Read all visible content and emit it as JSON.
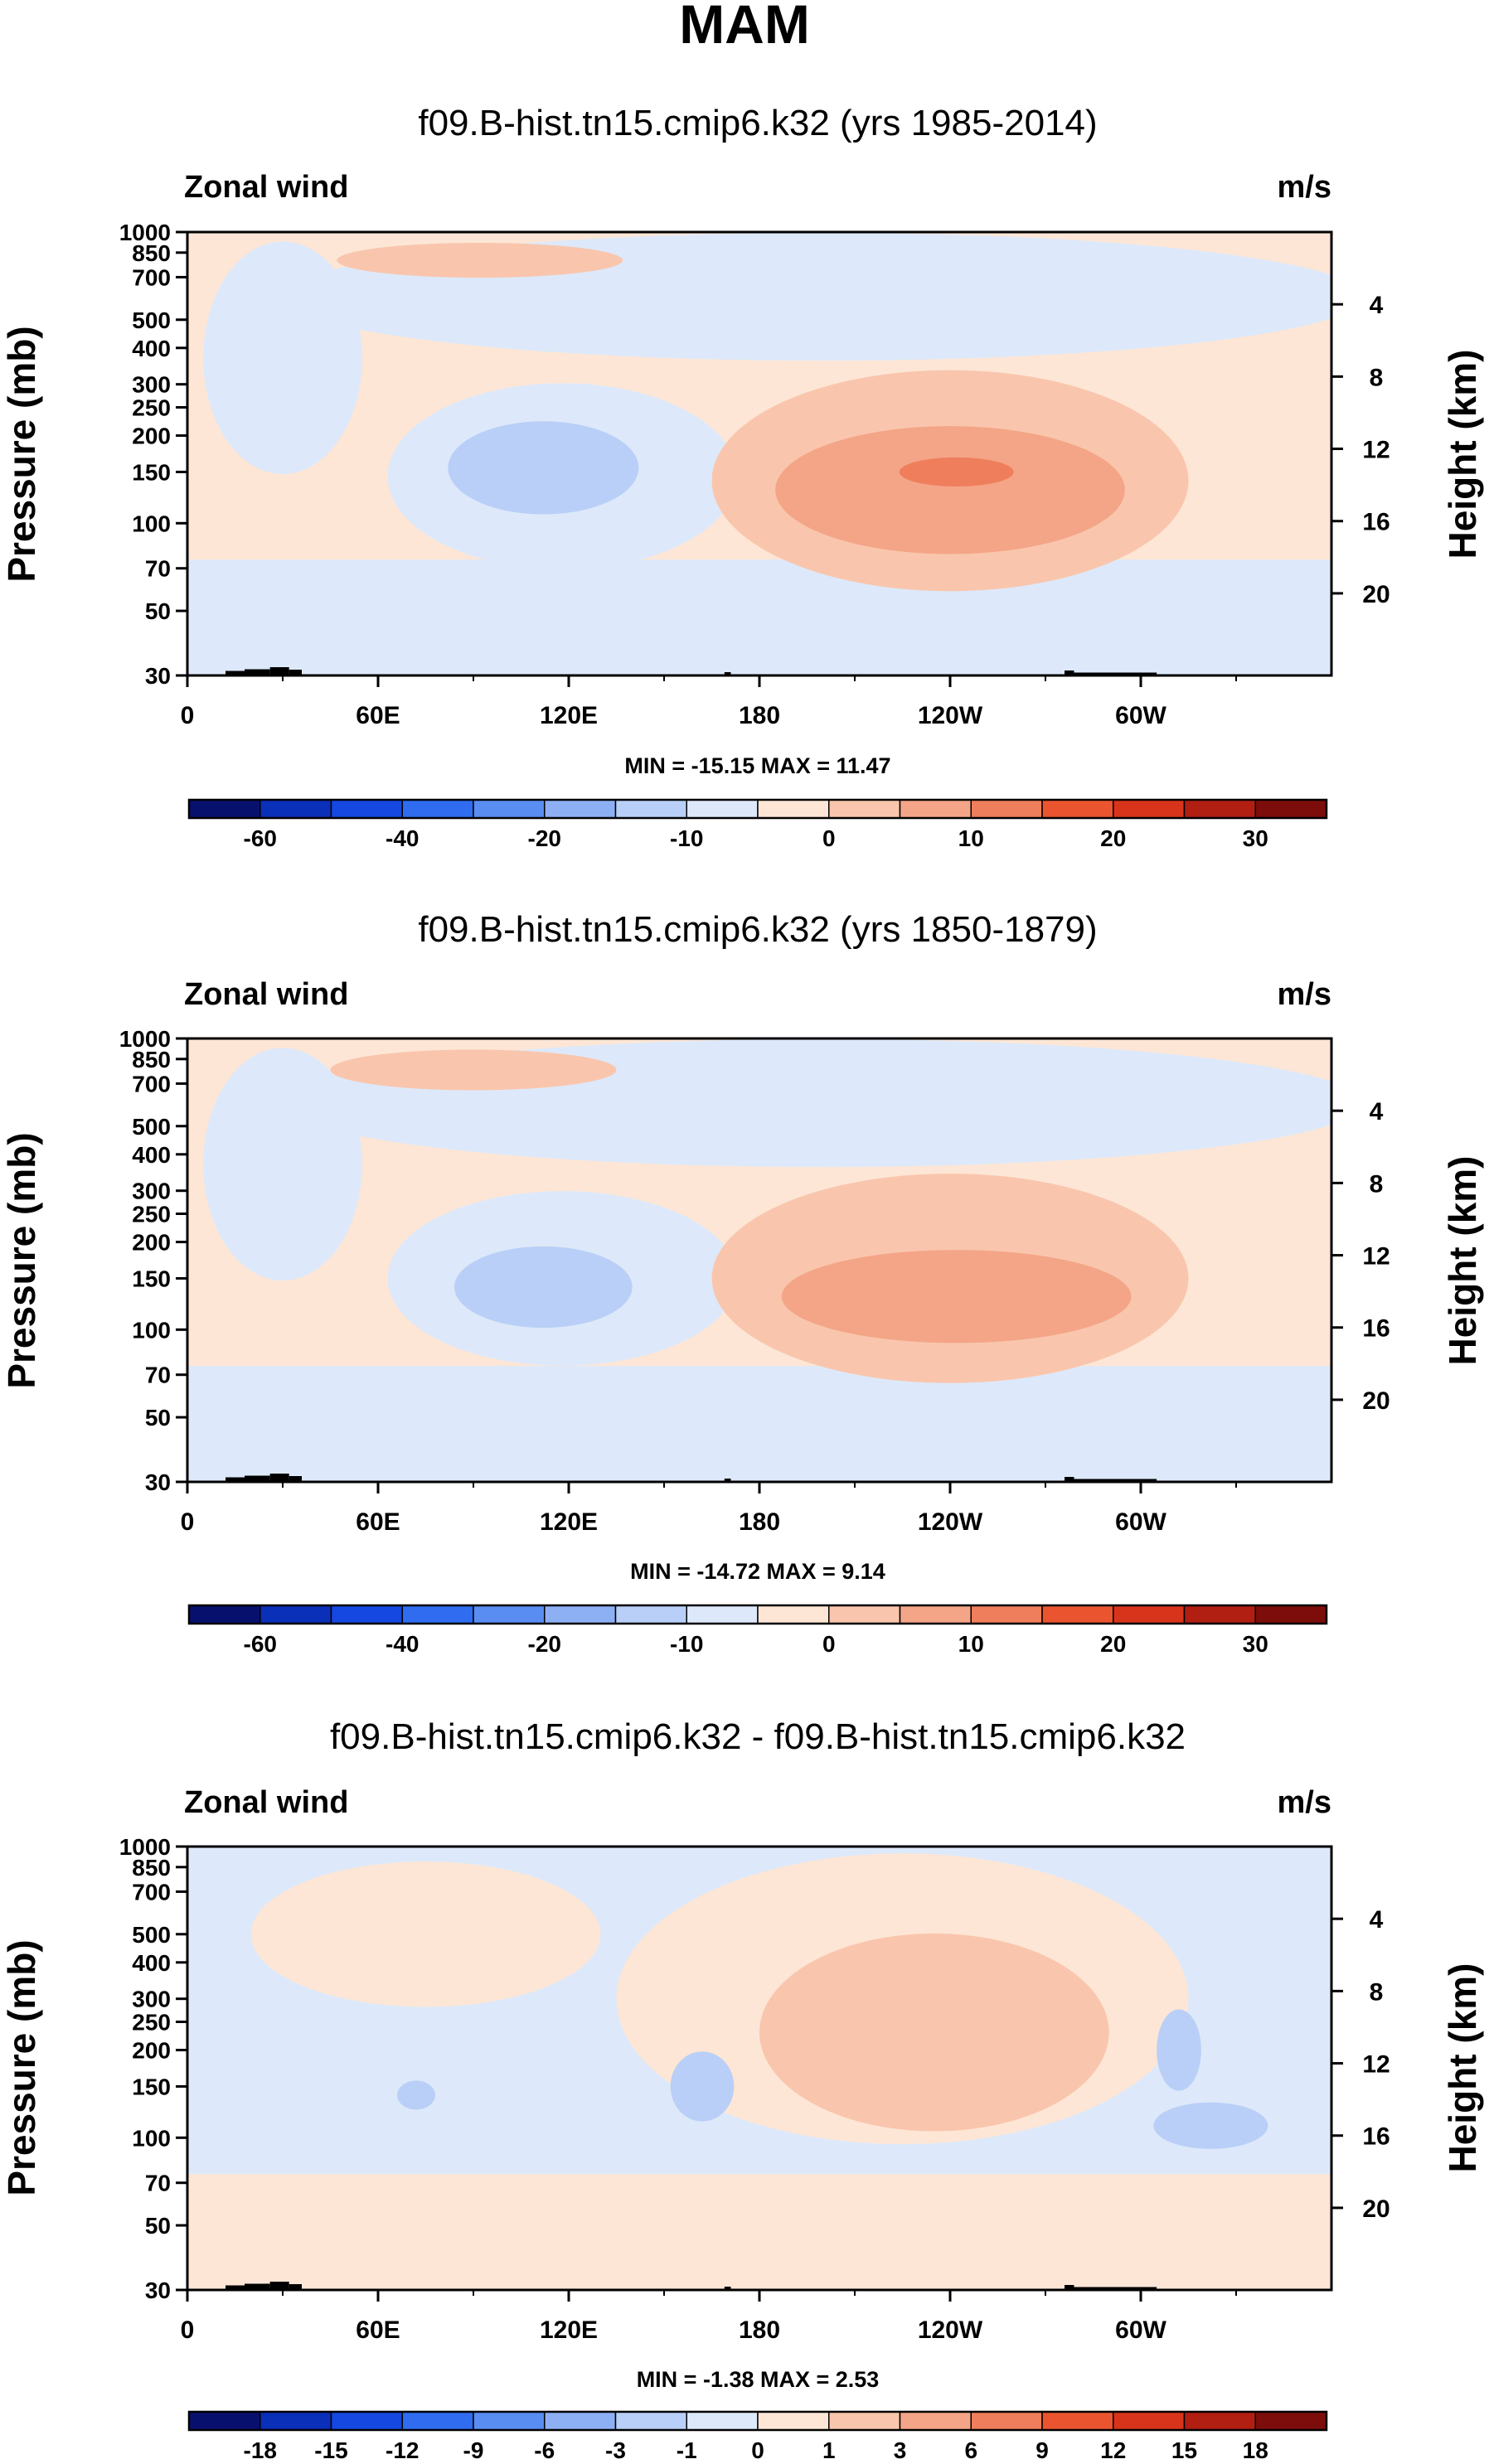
{
  "figure": {
    "title": "MAM"
  },
  "colors": {
    "full": [
      "#08106e",
      "#0a2fb8",
      "#1548e0",
      "#2f6cf0",
      "#5a8df2",
      "#8db0f5",
      "#b9cff7",
      "#dde9fa",
      "#fde6d6",
      "#f9c6ad",
      "#f4a587",
      "#ef7e5c",
      "#ea5530",
      "#d8341c",
      "#b11e12",
      "#7c0d0b"
    ],
    "ink": "#000000",
    "topo": "#000000",
    "frame": "#000000"
  },
  "chart_data": [
    {
      "type": "contour",
      "title": "f09.B-hist.tn15.cmip6.k32 (yrs 1985-2014)",
      "left_label": "Zonal wind",
      "right_label": "m/s",
      "xlabel": "",
      "ylabel": "Pressure (mb)",
      "ylabel_right": "Height (km)",
      "x_ticks": [
        "0",
        "60E",
        "120E",
        "180",
        "120W",
        "60W"
      ],
      "x_tick_values": [
        0,
        60,
        120,
        180,
        240,
        300
      ],
      "xlim": [
        0,
        360
      ],
      "ylim": [
        1000,
        30
      ],
      "y_ticks": [
        "30",
        "50",
        "70",
        "100",
        "150",
        "200",
        "250",
        "300",
        "400",
        "500",
        "700",
        "850",
        "1000"
      ],
      "y_tick_values": [
        30,
        50,
        70,
        100,
        150,
        200,
        250,
        300,
        400,
        500,
        700,
        850,
        1000
      ],
      "height_ticks": [
        "4",
        "8",
        "12",
        "16",
        "20"
      ],
      "height_tick_values": [
        4,
        8,
        12,
        16,
        20
      ],
      "stats": "MIN = -15.15  MAX =  11.47",
      "min": -15.15,
      "max": 11.47,
      "colorbar_labels": [
        "-60",
        "-40",
        "-20",
        "-10",
        "0",
        "10",
        "20",
        "30"
      ],
      "colorbar_label_slots": [
        1,
        3,
        5,
        7,
        9,
        11,
        13,
        15
      ],
      "regions": [
        {
          "level": 8,
          "pmin": 30,
          "pmax": 1000,
          "lons": [
            0,
            360
          ],
          "shape": "lower"
        },
        {
          "level": 7,
          "pmin": 30,
          "pmax": 75,
          "lons": [
            0,
            360
          ]
        },
        {
          "level": 7,
          "center": [
            118,
            145
          ],
          "dlon": 55,
          "dlogp": 0.32
        },
        {
          "level": 6,
          "center": [
            112,
            155
          ],
          "dlon": 30,
          "dlogp": 0.16
        },
        {
          "level": 7,
          "center": [
            200,
            600
          ],
          "dlon": 170,
          "dlogp": 0.22
        },
        {
          "level": 9,
          "center": [
            240,
            140
          ],
          "dlon": 75,
          "dlogp": 0.38
        },
        {
          "level": 10,
          "center": [
            240,
            130
          ],
          "dlon": 55,
          "dlogp": 0.22
        },
        {
          "level": 11,
          "center": [
            242,
            150
          ],
          "dlon": 18,
          "dlogp": 0.05
        },
        {
          "level": 9,
          "center": [
            92,
            800
          ],
          "dlon": 45,
          "dlogp": 0.06
        },
        {
          "level": 7,
          "center": [
            30,
            370
          ],
          "dlon": 25,
          "dlogp": 0.4
        }
      ]
    },
    {
      "type": "contour",
      "title": "f09.B-hist.tn15.cmip6.k32 (yrs 1850-1879)",
      "left_label": "Zonal wind",
      "right_label": "m/s",
      "xlabel": "",
      "ylabel": "Pressure (mb)",
      "ylabel_right": "Height (km)",
      "x_ticks": [
        "0",
        "60E",
        "120E",
        "180",
        "120W",
        "60W"
      ],
      "x_tick_values": [
        0,
        60,
        120,
        180,
        240,
        300
      ],
      "xlim": [
        0,
        360
      ],
      "ylim": [
        1000,
        30
      ],
      "y_ticks": [
        "30",
        "50",
        "70",
        "100",
        "150",
        "200",
        "250",
        "300",
        "400",
        "500",
        "700",
        "850",
        "1000"
      ],
      "y_tick_values": [
        30,
        50,
        70,
        100,
        150,
        200,
        250,
        300,
        400,
        500,
        700,
        850,
        1000
      ],
      "height_ticks": [
        "4",
        "8",
        "12",
        "16",
        "20"
      ],
      "height_tick_values": [
        4,
        8,
        12,
        16,
        20
      ],
      "stats": "MIN = -14.72  MAX =  9.14",
      "min": -14.72,
      "max": 9.14,
      "colorbar_labels": [
        "-60",
        "-40",
        "-20",
        "-10",
        "0",
        "10",
        "20",
        "30"
      ],
      "colorbar_label_slots": [
        1,
        3,
        5,
        7,
        9,
        11,
        13,
        15
      ],
      "regions": [
        {
          "level": 8,
          "pmin": 30,
          "pmax": 1000,
          "lons": [
            0,
            360
          ],
          "shape": "lower"
        },
        {
          "level": 7,
          "pmin": 30,
          "pmax": 75,
          "lons": [
            0,
            360
          ]
        },
        {
          "level": 7,
          "center": [
            118,
            150
          ],
          "dlon": 55,
          "dlogp": 0.3
        },
        {
          "level": 6,
          "center": [
            112,
            140
          ],
          "dlon": 28,
          "dlogp": 0.14
        },
        {
          "level": 7,
          "center": [
            200,
            600
          ],
          "dlon": 170,
          "dlogp": 0.22
        },
        {
          "level": 9,
          "center": [
            240,
            150
          ],
          "dlon": 75,
          "dlogp": 0.36
        },
        {
          "level": 10,
          "center": [
            242,
            130
          ],
          "dlon": 55,
          "dlogp": 0.16
        },
        {
          "level": 9,
          "center": [
            90,
            780
          ],
          "dlon": 45,
          "dlogp": 0.07
        },
        {
          "level": 7,
          "center": [
            30,
            370
          ],
          "dlon": 25,
          "dlogp": 0.4
        }
      ]
    },
    {
      "type": "contour",
      "title": "f09.B-hist.tn15.cmip6.k32 - f09.B-hist.tn15.cmip6.k32",
      "left_label": "Zonal wind",
      "right_label": "m/s",
      "xlabel": "",
      "ylabel": "Pressure (mb)",
      "ylabel_right": "Height (km)",
      "x_ticks": [
        "0",
        "60E",
        "120E",
        "180",
        "120W",
        "60W"
      ],
      "x_tick_values": [
        0,
        60,
        120,
        180,
        240,
        300
      ],
      "xlim": [
        0,
        360
      ],
      "ylim": [
        1000,
        30
      ],
      "y_ticks": [
        "30",
        "50",
        "70",
        "100",
        "150",
        "200",
        "250",
        "300",
        "400",
        "500",
        "700",
        "850",
        "1000"
      ],
      "y_tick_values": [
        30,
        50,
        70,
        100,
        150,
        200,
        250,
        300,
        400,
        500,
        700,
        850,
        1000
      ],
      "height_ticks": [
        "4",
        "8",
        "12",
        "16",
        "20"
      ],
      "height_tick_values": [
        4,
        8,
        12,
        16,
        20
      ],
      "stats": "MIN =  -1.38  MAX =   2.53",
      "min": -1.38,
      "max": 2.53,
      "colorbar_labels": [
        "-18",
        "-15",
        "-12",
        "-9",
        "-6",
        "-3",
        "-1",
        "0",
        "1",
        "3",
        "6",
        "9",
        "12",
        "15",
        "18"
      ],
      "colorbar_label_slots": [
        1,
        2,
        3,
        4,
        5,
        6,
        7,
        8,
        9,
        10,
        11,
        12,
        13,
        14,
        15
      ],
      "regions": [
        {
          "level": 7,
          "pmin": 30,
          "pmax": 1000,
          "lons": [
            0,
            360
          ],
          "shape": "lower"
        },
        {
          "level": 8,
          "pmin": 30,
          "pmax": 75,
          "lons": [
            0,
            360
          ]
        },
        {
          "level": 8,
          "center": [
            75,
            500
          ],
          "dlon": 55,
          "dlogp": 0.25
        },
        {
          "level": 8,
          "center": [
            225,
            300
          ],
          "dlon": 90,
          "dlogp": 0.5
        },
        {
          "level": 9,
          "center": [
            235,
            230
          ],
          "dlon": 55,
          "dlogp": 0.34
        },
        {
          "level": 6,
          "center": [
            162,
            150
          ],
          "dlon": 10,
          "dlogp": 0.12
        },
        {
          "level": 6,
          "center": [
            72,
            140
          ],
          "dlon": 6,
          "dlogp": 0.05
        },
        {
          "level": 6,
          "center": [
            322,
            110
          ],
          "dlon": 18,
          "dlogp": 0.08
        },
        {
          "level": 6,
          "center": [
            312,
            200
          ],
          "dlon": 7,
          "dlogp": 0.14
        }
      ]
    }
  ]
}
